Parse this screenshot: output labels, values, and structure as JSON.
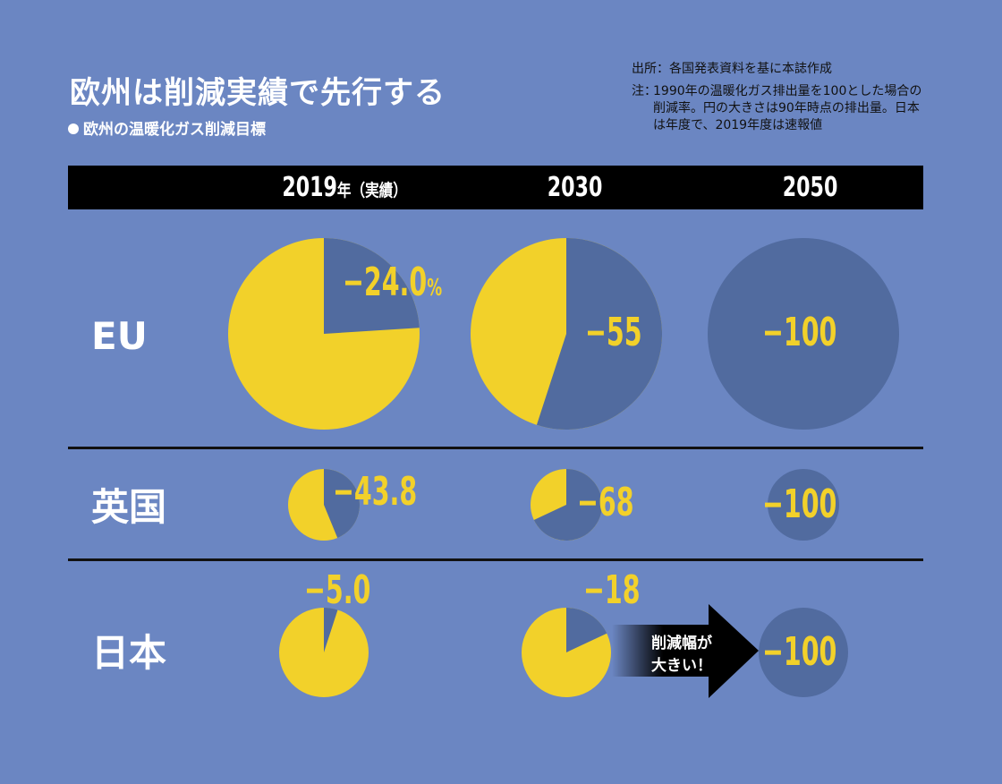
{
  "title": "欧州は削減実績で先行する",
  "subtitle": "欧州の温暖化ガス削減目標",
  "source": "出所：各国発表資料を基に本誌作成",
  "note": {
    "prefix": "注：",
    "text": "1990年の温暖化ガス排出量を100とした場合の削減率。円の大きさは90年時点の排出量。日本は年度で、2019年度は速報値"
  },
  "columns": {
    "c2019": "2019",
    "c2019_suffix": "年（実績）",
    "c2030": "2030",
    "c2050": "2050"
  },
  "rows": {
    "eu": "EU",
    "uk": "英国",
    "jp": "日本"
  },
  "callout": {
    "line1": "削減幅が",
    "line2": "大きい！"
  },
  "colors": {
    "background": "#6b86c2",
    "remaining": "#f2d12a",
    "reduction": "#516b9f",
    "header": "#000000"
  },
  "chart_data": {
    "type": "pie",
    "title": "欧州の温暖化ガス削減目標",
    "categories": [
      "2019年（実績）",
      "2030",
      "2050"
    ],
    "series": [
      {
        "name": "EU",
        "values": [
          -24.0,
          -55,
          -100
        ],
        "labels": [
          "−24.0",
          "−55",
          "−100"
        ],
        "unit": "%"
      },
      {
        "name": "英国",
        "values": [
          -43.8,
          -68,
          -100
        ],
        "labels": [
          "−43.8",
          "−68",
          "−100"
        ]
      },
      {
        "name": "日本",
        "values": [
          -5.0,
          -18,
          -100
        ],
        "labels": [
          "−5.0",
          "−18",
          "−100"
        ]
      }
    ]
  }
}
